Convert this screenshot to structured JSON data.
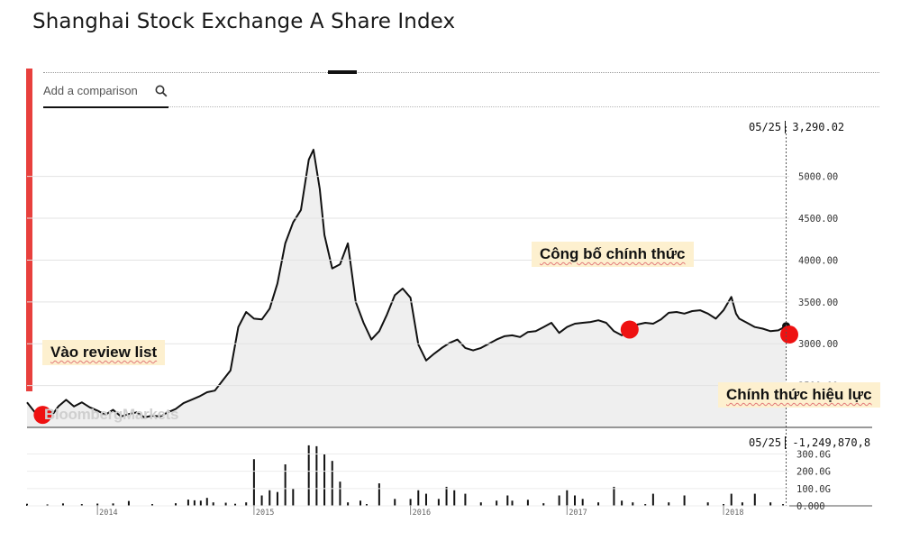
{
  "page": {
    "title": "Shanghai Stock Exchange A Share Index"
  },
  "toolbar": {
    "compare_placeholder": "Add a comparison"
  },
  "watermark": "BloombergMarkets",
  "readouts": {
    "price_date": "05/25",
    "price_value": "3,290.02",
    "volume_date": "05/25",
    "volume_value": "-1,249,870,8"
  },
  "annotations": [
    {
      "text": "Vào review list"
    },
    {
      "text": "Công bố chính thức"
    },
    {
      "text": "Chính thức hiệu lực"
    }
  ],
  "colors": {
    "line": "#111111",
    "fill": "#efefef",
    "marker": "#ee1111",
    "accent_bar": "#e8403d",
    "annotation_bg": "#fdf0cf"
  },
  "chart_data": [
    {
      "type": "area",
      "title": "Shanghai Stock Exchange A Share Index",
      "xlabel": "",
      "ylabel": "",
      "x_ticks": [
        "2014",
        "2015",
        "2016",
        "2017",
        "2018"
      ],
      "y_ticks": [
        "5000.00",
        "4500.00",
        "4000.00",
        "3500.00",
        "3000.00",
        "2500.00"
      ],
      "xlim": [
        2013.55,
        2018.42
      ],
      "ylim": [
        2000,
        5600
      ],
      "grid": true,
      "series": [
        {
          "values": [
            [
              2013.55,
              2300
            ],
            [
              2013.6,
              2180
            ],
            [
              2013.63,
              2120
            ],
            [
              2013.68,
              2200
            ],
            [
              2013.72,
              2170
            ],
            [
              2013.75,
              2250
            ],
            [
              2013.8,
              2330
            ],
            [
              2013.85,
              2250
            ],
            [
              2013.9,
              2300
            ],
            [
              2013.95,
              2240
            ],
            [
              2014.0,
              2200
            ],
            [
              2014.05,
              2150
            ],
            [
              2014.1,
              2210
            ],
            [
              2014.15,
              2130
            ],
            [
              2014.2,
              2160
            ],
            [
              2014.25,
              2180
            ],
            [
              2014.3,
              2120
            ],
            [
              2014.35,
              2140
            ],
            [
              2014.4,
              2130
            ],
            [
              2014.45,
              2180
            ],
            [
              2014.5,
              2220
            ],
            [
              2014.55,
              2290
            ],
            [
              2014.6,
              2330
            ],
            [
              2014.65,
              2370
            ],
            [
              2014.7,
              2420
            ],
            [
              2014.75,
              2440
            ],
            [
              2014.8,
              2560
            ],
            [
              2014.85,
              2680
            ],
            [
              2014.9,
              3200
            ],
            [
              2014.95,
              3380
            ],
            [
              2015.0,
              3300
            ],
            [
              2015.05,
              3290
            ],
            [
              2015.1,
              3420
            ],
            [
              2015.15,
              3720
            ],
            [
              2015.2,
              4200
            ],
            [
              2015.25,
              4450
            ],
            [
              2015.3,
              4600
            ],
            [
              2015.35,
              5200
            ],
            [
              2015.38,
              5320
            ],
            [
              2015.42,
              4850
            ],
            [
              2015.45,
              4300
            ],
            [
              2015.5,
              3900
            ],
            [
              2015.55,
              3950
            ],
            [
              2015.6,
              4200
            ],
            [
              2015.65,
              3500
            ],
            [
              2015.7,
              3250
            ],
            [
              2015.75,
              3050
            ],
            [
              2015.8,
              3150
            ],
            [
              2015.85,
              3350
            ],
            [
              2015.9,
              3580
            ],
            [
              2015.95,
              3660
            ],
            [
              2016.0,
              3550
            ],
            [
              2016.05,
              2990
            ],
            [
              2016.1,
              2800
            ],
            [
              2016.15,
              2880
            ],
            [
              2016.2,
              2950
            ],
            [
              2016.25,
              3010
            ],
            [
              2016.3,
              3050
            ],
            [
              2016.35,
              2950
            ],
            [
              2016.4,
              2920
            ],
            [
              2016.45,
              2950
            ],
            [
              2016.5,
              3000
            ],
            [
              2016.55,
              3050
            ],
            [
              2016.6,
              3090
            ],
            [
              2016.65,
              3100
            ],
            [
              2016.7,
              3080
            ],
            [
              2016.75,
              3140
            ],
            [
              2016.8,
              3150
            ],
            [
              2016.85,
              3200
            ],
            [
              2016.9,
              3250
            ],
            [
              2016.95,
              3130
            ],
            [
              2017.0,
              3200
            ],
            [
              2017.05,
              3240
            ],
            [
              2017.1,
              3250
            ],
            [
              2017.15,
              3260
            ],
            [
              2017.2,
              3280
            ],
            [
              2017.25,
              3250
            ],
            [
              2017.3,
              3150
            ],
            [
              2017.35,
              3100
            ],
            [
              2017.4,
              3170
            ],
            [
              2017.45,
              3230
            ],
            [
              2017.5,
              3250
            ],
            [
              2017.55,
              3240
            ],
            [
              2017.6,
              3290
            ],
            [
              2017.65,
              3370
            ],
            [
              2017.7,
              3380
            ],
            [
              2017.75,
              3360
            ],
            [
              2017.8,
              3390
            ],
            [
              2017.85,
              3400
            ],
            [
              2017.9,
              3360
            ],
            [
              2017.95,
              3300
            ],
            [
              2018.0,
              3400
            ],
            [
              2018.05,
              3560
            ],
            [
              2018.08,
              3360
            ],
            [
              2018.1,
              3300
            ],
            [
              2018.15,
              3250
            ],
            [
              2018.2,
              3200
            ],
            [
              2018.25,
              3180
            ],
            [
              2018.3,
              3150
            ],
            [
              2018.35,
              3160
            ],
            [
              2018.4,
              3210
            ]
          ]
        }
      ],
      "markers": [
        {
          "x": 2013.65,
          "y": 2150
        },
        {
          "x": 2017.4,
          "y": 3170
        },
        {
          "x": 2018.42,
          "y": 3110
        }
      ]
    },
    {
      "type": "bar",
      "xlabel": "",
      "ylabel": "",
      "y_ticks": [
        "300.0G",
        "200.0G",
        "100.0G",
        "0.000"
      ],
      "ylim": [
        0,
        360
      ],
      "series": [
        {
          "values": [
            [
              2013.55,
              12
            ],
            [
              2013.68,
              8
            ],
            [
              2013.78,
              14
            ],
            [
              2013.9,
              10
            ],
            [
              2014.0,
              13
            ],
            [
              2014.1,
              14
            ],
            [
              2014.2,
              28
            ],
            [
              2014.35,
              10
            ],
            [
              2014.5,
              15
            ],
            [
              2014.58,
              36
            ],
            [
              2014.62,
              32
            ],
            [
              2014.66,
              30
            ],
            [
              2014.7,
              46
            ],
            [
              2014.74,
              20
            ],
            [
              2014.82,
              18
            ],
            [
              2014.88,
              12
            ],
            [
              2014.95,
              20
            ],
            [
              2015.0,
              270
            ],
            [
              2015.05,
              60
            ],
            [
              2015.1,
              90
            ],
            [
              2015.15,
              80
            ],
            [
              2015.2,
              240
            ],
            [
              2015.25,
              100
            ],
            [
              2015.35,
              350
            ],
            [
              2015.4,
              345
            ],
            [
              2015.45,
              300
            ],
            [
              2015.5,
              260
            ],
            [
              2015.55,
              140
            ],
            [
              2015.6,
              20
            ],
            [
              2015.68,
              30
            ],
            [
              2015.72,
              10
            ],
            [
              2015.8,
              130
            ],
            [
              2015.9,
              40
            ],
            [
              2016.0,
              40
            ],
            [
              2016.05,
              90
            ],
            [
              2016.1,
              70
            ],
            [
              2016.18,
              40
            ],
            [
              2016.23,
              110
            ],
            [
              2016.28,
              90
            ],
            [
              2016.35,
              70
            ],
            [
              2016.45,
              20
            ],
            [
              2016.55,
              30
            ],
            [
              2016.62,
              60
            ],
            [
              2016.65,
              30
            ],
            [
              2016.75,
              35
            ],
            [
              2016.85,
              15
            ],
            [
              2016.95,
              60
            ],
            [
              2017.0,
              90
            ],
            [
              2017.05,
              60
            ],
            [
              2017.1,
              40
            ],
            [
              2017.2,
              20
            ],
            [
              2017.3,
              110
            ],
            [
              2017.35,
              30
            ],
            [
              2017.42,
              20
            ],
            [
              2017.5,
              10
            ],
            [
              2017.55,
              70
            ],
            [
              2017.65,
              20
            ],
            [
              2017.75,
              60
            ],
            [
              2017.9,
              20
            ],
            [
              2018.0,
              10
            ],
            [
              2018.05,
              70
            ],
            [
              2018.12,
              20
            ],
            [
              2018.2,
              70
            ],
            [
              2018.3,
              20
            ],
            [
              2018.38,
              10
            ]
          ]
        }
      ]
    }
  ]
}
